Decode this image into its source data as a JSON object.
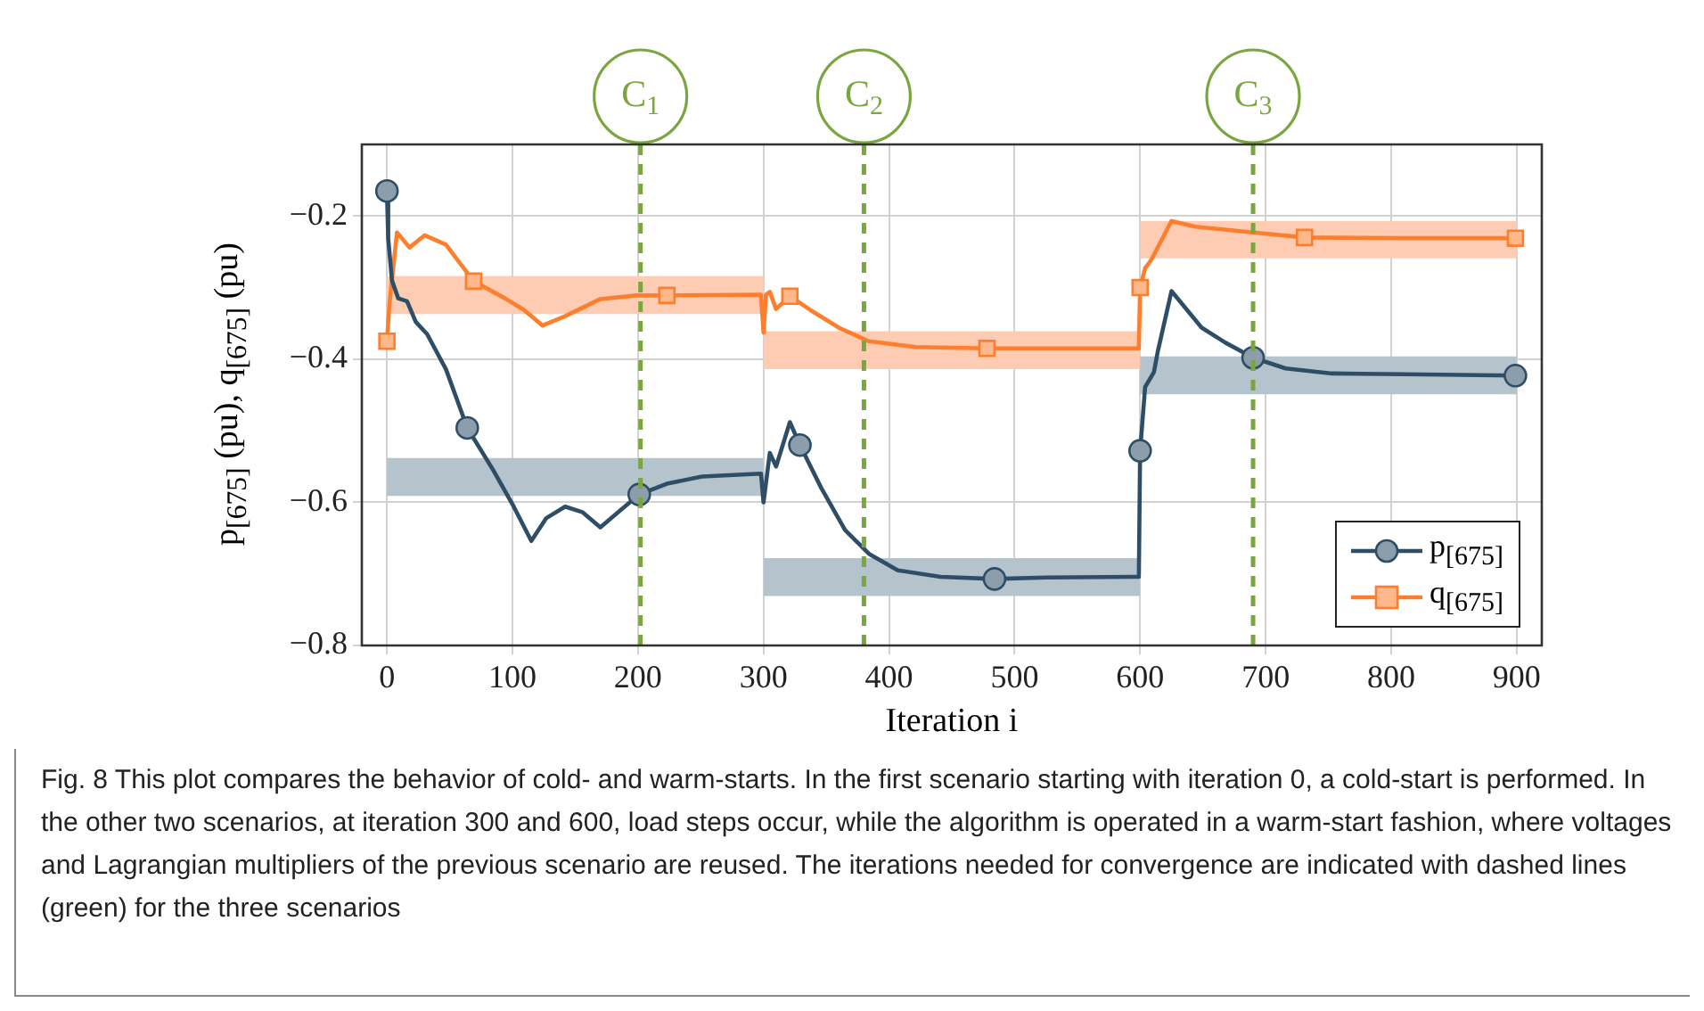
{
  "chart_data": {
    "type": "line",
    "xlabel": "Iteration i",
    "ylabel": "p$_{[675]}$ (pu), q$_{[675]}$ (pu)",
    "xlim": [
      -20,
      920
    ],
    "xticks": [
      0,
      100,
      200,
      300,
      400,
      500,
      600,
      700,
      800,
      900
    ],
    "ylim": [
      -0.8,
      -0.1
    ],
    "yticks": [
      {
        "value": -0.8,
        "label": "−0.8"
      },
      {
        "value": -0.6,
        "label": "−0.6"
      },
      {
        "value": -0.4,
        "label": "−0.4"
      },
      {
        "value": -0.2,
        "label": "−0.2"
      }
    ],
    "grid": true,
    "legend": "bottom right",
    "series": [
      {
        "type": "area",
        "color": "#fdccb2",
        "x": [
          0,
          300
        ],
        "values": [
          null,
          null
        ],
        "lower": [
          -0.337,
          -0.337
        ],
        "upper": [
          -0.284,
          -0.284
        ]
      },
      {
        "type": "area",
        "color": "#b5c3cc",
        "x": [
          0,
          300
        ],
        "values": [
          null,
          null
        ],
        "lower": [
          -0.591,
          -0.591
        ],
        "upper": [
          -0.538,
          -0.538
        ]
      },
      {
        "type": "area",
        "color": "#fdccb2",
        "x": [
          300,
          600
        ],
        "values": [
          null,
          null
        ],
        "lower": [
          -0.414,
          -0.414
        ],
        "upper": [
          -0.361,
          -0.361
        ]
      },
      {
        "type": "area",
        "color": "#b5c3cc",
        "x": [
          300,
          600
        ],
        "values": [
          null,
          null
        ],
        "lower": [
          -0.731,
          -0.731
        ],
        "upper": [
          -0.678,
          -0.678
        ]
      },
      {
        "type": "area",
        "color": "#fdccb2",
        "x": [
          600,
          900
        ],
        "values": [
          null,
          null
        ],
        "lower": [
          -0.259,
          -0.259
        ],
        "upper": [
          -0.207,
          -0.207
        ]
      },
      {
        "type": "area",
        "color": "#b5c3cc",
        "x": [
          600,
          900
        ],
        "values": [
          null,
          null
        ],
        "lower": [
          -0.449,
          -0.449
        ],
        "upper": [
          -0.396,
          -0.396
        ]
      },
      {
        "name": "p$_{[675]}$",
        "color": "#2d4e66",
        "marker": "none",
        "line_style": "solid",
        "x": [
          0,
          1,
          4,
          9,
          16,
          23,
          32,
          47,
          64,
          85,
          101,
          115,
          127,
          142,
          156,
          170,
          184,
          201,
          223,
          251,
          298,
          300,
          305,
          310,
          321,
          329,
          346,
          365,
          384,
          407,
          441,
          484,
          525,
          599,
          600,
          604,
          611,
          614,
          625,
          649,
          668,
          690,
          716,
          753,
          810,
          899
        ],
        "values": [
          -0.165,
          -0.231,
          -0.29,
          -0.315,
          -0.319,
          -0.348,
          -0.365,
          -0.414,
          -0.496,
          -0.556,
          -0.606,
          -0.654,
          -0.622,
          -0.606,
          -0.614,
          -0.635,
          -0.614,
          -0.589,
          -0.574,
          -0.564,
          -0.56,
          -0.6,
          -0.531,
          -0.55,
          -0.488,
          -0.52,
          -0.58,
          -0.639,
          -0.672,
          -0.695,
          -0.704,
          -0.707,
          -0.705,
          -0.704,
          -0.528,
          -0.439,
          -0.418,
          -0.39,
          -0.305,
          -0.356,
          -0.377,
          -0.398,
          -0.413,
          -0.42,
          -0.421,
          -0.423
        ]
      },
      {
        "type": "scatter",
        "color": "#2d4e66",
        "marker": "circle",
        "x": [
          0,
          64,
          201,
          329,
          484,
          600,
          690,
          899
        ],
        "values": [
          -0.165,
          -0.496,
          -0.589,
          -0.52,
          -0.707,
          -0.528,
          -0.398,
          -0.423
        ]
      },
      {
        "name": "q$_{[675]}$",
        "color": "#fd7e2c",
        "marker": "none",
        "line_style": "solid",
        "x": [
          0,
          2,
          8,
          18,
          30,
          47,
          69,
          94,
          109,
          124,
          142,
          170,
          199,
          223,
          298,
          300,
          302,
          305,
          310,
          321,
          337,
          360,
          384,
          421,
          478,
          599,
          600,
          604,
          609,
          625,
          644,
          690,
          731,
          810,
          899
        ],
        "values": [
          -0.375,
          -0.323,
          -0.223,
          -0.244,
          -0.227,
          -0.24,
          -0.291,
          -0.315,
          -0.331,
          -0.353,
          -0.34,
          -0.316,
          -0.311,
          -0.311,
          -0.31,
          -0.363,
          -0.31,
          -0.306,
          -0.33,
          -0.312,
          -0.331,
          -0.356,
          -0.375,
          -0.383,
          -0.385,
          -0.385,
          -0.3,
          -0.273,
          -0.261,
          -0.207,
          -0.215,
          -0.223,
          -0.23,
          -0.231,
          -0.231
        ]
      },
      {
        "type": "scatter",
        "color": "#fd7e2c",
        "marker": "square",
        "x": [
          0,
          69,
          223,
          321,
          478,
          600,
          731,
          899
        ],
        "values": [
          -0.375,
          -0.291,
          -0.311,
          -0.312,
          -0.385,
          -0.3,
          -0.23,
          -0.231
        ]
      }
    ],
    "ref_lines": [
      {
        "axis": "x",
        "value": 202,
        "label": "C$_{1}$",
        "color": "#7aa63f",
        "line_style": "dashed"
      },
      {
        "axis": "x",
        "value": 380,
        "label": "C$_{2}$",
        "color": "#7aa63f",
        "line_style": "dashed"
      },
      {
        "axis": "x",
        "value": 690,
        "label": "C$_{3}$",
        "color": "#7aa63f",
        "line_style": "dashed"
      }
    ],
    "annotations": [
      "Fig. 8  This plot compares the behavior of cold- and warm-starts. In the first scenario starting with iteration 0, a cold-start is performed. In the other two scenarios, at iteration 300 and 600, load steps occur, while the algorithm is operated in a warm-start fashion, where voltages and Lagrangian multipliers of the previous scenario are reused. The iterations needed for convergence are indicated with dashed lines (green) for the three scenarios"
    ]
  }
}
